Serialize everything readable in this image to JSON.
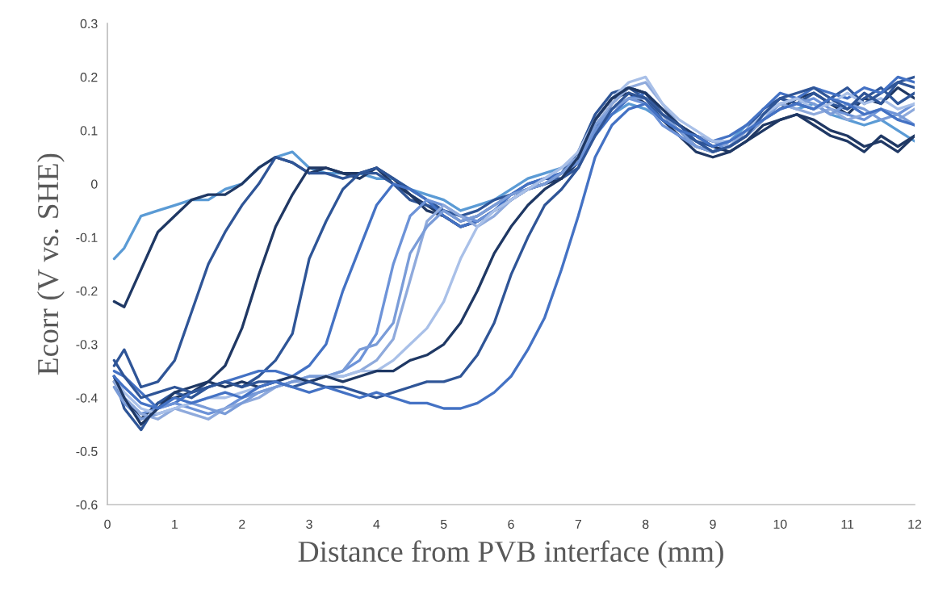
{
  "chart_data": {
    "type": "line",
    "xlabel": "Distance from PVB interface (mm)",
    "ylabel": "Ecorr (V vs. SHE)",
    "x": [
      0.1,
      0.25,
      0.5,
      0.75,
      1.0,
      1.25,
      1.5,
      1.75,
      2.0,
      2.25,
      2.5,
      2.75,
      3.0,
      3.25,
      3.5,
      3.75,
      4.0,
      4.25,
      4.5,
      4.75,
      5.0,
      5.25,
      5.5,
      5.75,
      6.0,
      6.25,
      6.5,
      6.75,
      7.0,
      7.25,
      7.5,
      7.75,
      8.0,
      8.25,
      8.5,
      8.75,
      9.0,
      9.25,
      9.5,
      9.75,
      10.0,
      10.25,
      10.5,
      10.75,
      11.0,
      11.25,
      11.5,
      11.75,
      12.0
    ],
    "xlim": [
      0,
      12
    ],
    "xticks": [
      0,
      1,
      2,
      3,
      4,
      5,
      6,
      7,
      8,
      9,
      10,
      11,
      12
    ],
    "ylim": [
      -0.6,
      0.3
    ],
    "yticks": [
      -0.6,
      -0.5,
      -0.4,
      -0.3,
      -0.2,
      -0.1,
      0,
      0.1,
      0.2,
      0.3
    ],
    "grid": false,
    "legend": false,
    "line_style": "solid",
    "marker": "none",
    "series": [
      {
        "color": "#5b9bd5",
        "values": [
          -0.14,
          -0.12,
          -0.06,
          -0.05,
          -0.04,
          -0.03,
          -0.03,
          -0.01,
          0.0,
          0.03,
          0.05,
          0.06,
          0.03,
          0.02,
          0.02,
          0.02,
          0.01,
          0.01,
          -0.01,
          -0.02,
          -0.03,
          -0.05,
          -0.04,
          -0.03,
          -0.01,
          0.01,
          0.02,
          0.03,
          0.05,
          0.1,
          0.13,
          0.15,
          0.14,
          0.12,
          0.1,
          0.08,
          0.06,
          0.08,
          0.11,
          0.13,
          0.15,
          0.14,
          0.15,
          0.13,
          0.12,
          0.11,
          0.12,
          0.1,
          0.08
        ]
      },
      {
        "color": "#1f3864",
        "values": [
          -0.22,
          -0.23,
          -0.16,
          -0.09,
          -0.06,
          -0.03,
          -0.02,
          -0.02,
          0.0,
          0.03,
          0.05,
          0.04,
          0.02,
          0.03,
          0.02,
          0.01,
          0.03,
          0.0,
          -0.02,
          -0.04,
          -0.06,
          -0.08,
          -0.07,
          -0.05,
          -0.03,
          -0.01,
          0.0,
          0.01,
          0.04,
          0.12,
          0.16,
          0.18,
          0.17,
          0.13,
          0.1,
          0.07,
          0.06,
          0.07,
          0.09,
          0.12,
          0.14,
          0.16,
          0.17,
          0.15,
          0.13,
          0.16,
          0.15,
          0.18,
          0.16
        ]
      },
      {
        "color": "#2f5597",
        "values": [
          -0.34,
          -0.31,
          -0.38,
          -0.37,
          -0.33,
          -0.24,
          -0.15,
          -0.09,
          -0.04,
          0.0,
          0.05,
          0.04,
          0.02,
          0.02,
          0.01,
          0.02,
          0.02,
          0.0,
          -0.03,
          -0.04,
          -0.05,
          -0.07,
          -0.06,
          -0.04,
          -0.02,
          -0.01,
          0.01,
          0.01,
          0.03,
          0.1,
          0.15,
          0.18,
          0.17,
          0.13,
          0.11,
          0.09,
          0.08,
          0.07,
          0.1,
          0.13,
          0.16,
          0.15,
          0.14,
          0.16,
          0.18,
          0.15,
          0.17,
          0.19,
          0.2
        ]
      },
      {
        "color": "#203864",
        "values": [
          -0.37,
          -0.4,
          -0.44,
          -0.41,
          -0.4,
          -0.39,
          -0.37,
          -0.34,
          -0.27,
          -0.17,
          -0.08,
          -0.02,
          0.03,
          0.03,
          0.02,
          0.02,
          0.03,
          0.01,
          -0.02,
          -0.05,
          -0.06,
          -0.08,
          -0.07,
          -0.05,
          -0.03,
          -0.01,
          0.0,
          0.02,
          0.05,
          0.12,
          0.16,
          0.17,
          0.15,
          0.12,
          0.09,
          0.06,
          0.05,
          0.06,
          0.08,
          0.11,
          0.12,
          0.13,
          0.12,
          0.1,
          0.09,
          0.07,
          0.08,
          0.06,
          0.09
        ]
      },
      {
        "color": "#2e5597",
        "values": [
          -0.36,
          -0.42,
          -0.46,
          -0.41,
          -0.39,
          -0.4,
          -0.38,
          -0.37,
          -0.38,
          -0.36,
          -0.33,
          -0.28,
          -0.14,
          -0.07,
          -0.01,
          0.02,
          0.03,
          0.01,
          -0.01,
          -0.03,
          -0.05,
          -0.06,
          -0.05,
          -0.03,
          -0.02,
          0.0,
          0.01,
          0.02,
          0.06,
          0.13,
          0.17,
          0.18,
          0.16,
          0.12,
          0.1,
          0.08,
          0.07,
          0.08,
          0.1,
          0.14,
          0.16,
          0.15,
          0.17,
          0.15,
          0.14,
          0.16,
          0.18,
          0.15,
          0.17
        ]
      },
      {
        "color": "#4472c4",
        "values": [
          -0.35,
          -0.36,
          -0.39,
          -0.42,
          -0.41,
          -0.39,
          -0.38,
          -0.37,
          -0.36,
          -0.35,
          -0.35,
          -0.36,
          -0.34,
          -0.3,
          -0.2,
          -0.12,
          -0.04,
          0.0,
          -0.01,
          -0.03,
          -0.06,
          -0.08,
          -0.07,
          -0.05,
          -0.02,
          0.0,
          0.01,
          0.02,
          0.04,
          0.09,
          0.13,
          0.16,
          0.17,
          0.14,
          0.11,
          0.09,
          0.08,
          0.09,
          0.11,
          0.14,
          0.17,
          0.16,
          0.18,
          0.17,
          0.16,
          0.18,
          0.17,
          0.2,
          0.19
        ]
      },
      {
        "color": "#6d93d8",
        "values": [
          -0.36,
          -0.4,
          -0.43,
          -0.42,
          -0.41,
          -0.42,
          -0.43,
          -0.42,
          -0.4,
          -0.39,
          -0.38,
          -0.37,
          -0.36,
          -0.36,
          -0.35,
          -0.33,
          -0.28,
          -0.15,
          -0.06,
          -0.03,
          -0.04,
          -0.06,
          -0.07,
          -0.05,
          -0.03,
          -0.01,
          0.0,
          0.02,
          0.04,
          0.1,
          0.14,
          0.16,
          0.15,
          0.11,
          0.09,
          0.07,
          0.06,
          0.08,
          0.1,
          0.12,
          0.14,
          0.15,
          0.16,
          0.14,
          0.13,
          0.12,
          0.14,
          0.13,
          0.15
        ]
      },
      {
        "color": "#8faadc",
        "values": [
          -0.37,
          -0.4,
          -0.43,
          -0.44,
          -0.42,
          -0.43,
          -0.44,
          -0.42,
          -0.41,
          -0.4,
          -0.38,
          -0.37,
          -0.37,
          -0.36,
          -0.36,
          -0.35,
          -0.33,
          -0.29,
          -0.18,
          -0.07,
          -0.04,
          -0.06,
          -0.08,
          -0.06,
          -0.03,
          -0.01,
          0.01,
          0.03,
          0.05,
          0.11,
          0.15,
          0.18,
          0.19,
          0.15,
          0.11,
          0.09,
          0.08,
          0.07,
          0.1,
          0.13,
          0.15,
          0.14,
          0.13,
          0.14,
          0.12,
          0.13,
          0.14,
          0.12,
          0.14
        ]
      },
      {
        "color": "#7a9cd8",
        "values": [
          -0.38,
          -0.41,
          -0.44,
          -0.43,
          -0.42,
          -0.41,
          -0.42,
          -0.43,
          -0.41,
          -0.39,
          -0.38,
          -0.37,
          -0.36,
          -0.36,
          -0.35,
          -0.31,
          -0.3,
          -0.26,
          -0.13,
          -0.08,
          -0.05,
          -0.07,
          -0.06,
          -0.04,
          -0.02,
          -0.01,
          0.0,
          0.02,
          0.05,
          0.11,
          0.14,
          0.16,
          0.16,
          0.13,
          0.1,
          0.07,
          0.06,
          0.07,
          0.09,
          0.12,
          0.15,
          0.16,
          0.15,
          0.13,
          0.15,
          0.14,
          0.12,
          0.13,
          0.11
        ]
      },
      {
        "color": "#a9c0e8",
        "values": [
          -0.36,
          -0.39,
          -0.42,
          -0.43,
          -0.42,
          -0.41,
          -0.4,
          -0.4,
          -0.39,
          -0.38,
          -0.37,
          -0.36,
          -0.37,
          -0.36,
          -0.36,
          -0.35,
          -0.35,
          -0.33,
          -0.3,
          -0.27,
          -0.22,
          -0.14,
          -0.08,
          -0.05,
          -0.03,
          -0.01,
          0.01,
          0.03,
          0.06,
          0.12,
          0.16,
          0.19,
          0.2,
          0.15,
          0.12,
          0.1,
          0.08,
          0.08,
          0.1,
          0.13,
          0.15,
          0.16,
          0.14,
          0.15,
          0.17,
          0.15,
          0.16,
          0.14,
          0.15
        ]
      },
      {
        "color": "#1f3864",
        "values": [
          -0.36,
          -0.4,
          -0.45,
          -0.42,
          -0.39,
          -0.38,
          -0.37,
          -0.38,
          -0.37,
          -0.38,
          -0.37,
          -0.36,
          -0.37,
          -0.36,
          -0.37,
          -0.36,
          -0.35,
          -0.35,
          -0.33,
          -0.32,
          -0.3,
          -0.26,
          -0.2,
          -0.13,
          -0.08,
          -0.04,
          -0.01,
          0.01,
          0.05,
          0.12,
          0.16,
          0.18,
          0.17,
          0.14,
          0.11,
          0.09,
          0.07,
          0.06,
          0.08,
          0.1,
          0.12,
          0.13,
          0.11,
          0.09,
          0.08,
          0.06,
          0.09,
          0.07,
          0.09
        ]
      },
      {
        "color": "#2f5597",
        "values": [
          -0.33,
          -0.36,
          -0.4,
          -0.39,
          -0.38,
          -0.39,
          -0.38,
          -0.37,
          -0.38,
          -0.37,
          -0.37,
          -0.38,
          -0.37,
          -0.38,
          -0.38,
          -0.39,
          -0.4,
          -0.39,
          -0.38,
          -0.37,
          -0.37,
          -0.36,
          -0.32,
          -0.26,
          -0.17,
          -0.1,
          -0.04,
          -0.01,
          0.03,
          0.09,
          0.14,
          0.17,
          0.16,
          0.13,
          0.11,
          0.08,
          0.06,
          0.07,
          0.09,
          0.13,
          0.16,
          0.17,
          0.18,
          0.16,
          0.14,
          0.17,
          0.15,
          0.19,
          0.18
        ]
      },
      {
        "color": "#4472c4",
        "values": [
          -0.36,
          -0.38,
          -0.41,
          -0.42,
          -0.4,
          -0.41,
          -0.4,
          -0.39,
          -0.4,
          -0.38,
          -0.37,
          -0.38,
          -0.39,
          -0.38,
          -0.39,
          -0.4,
          -0.39,
          -0.4,
          -0.41,
          -0.41,
          -0.42,
          -0.42,
          -0.41,
          -0.39,
          -0.36,
          -0.31,
          -0.25,
          -0.16,
          -0.06,
          0.05,
          0.11,
          0.14,
          0.15,
          0.12,
          0.1,
          0.09,
          0.07,
          0.08,
          0.1,
          0.12,
          0.14,
          0.15,
          0.14,
          0.16,
          0.15,
          0.13,
          0.14,
          0.12,
          0.11
        ]
      }
    ]
  }
}
